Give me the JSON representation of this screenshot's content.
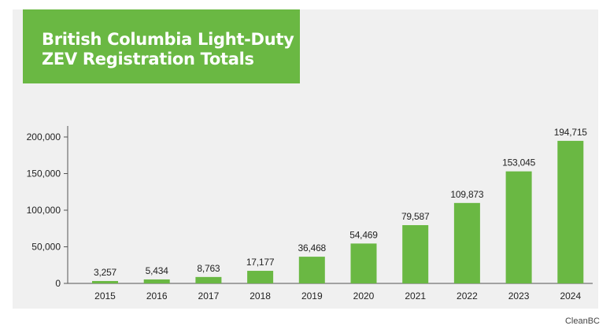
{
  "colors": {
    "bar": "#6ab843",
    "title_background": "#6ab843",
    "title_text": "#ffffff",
    "panel_background": "#f0f0f0",
    "axis": "#555555",
    "text": "#222222"
  },
  "source": "CleanBC",
  "chart_data": {
    "type": "bar",
    "title": [
      "British Columbia Light-Duty",
      "ZEV Registration Totals"
    ],
    "xlabel": "",
    "ylabel": "",
    "grid": false,
    "legend": "none",
    "ylim": [
      0,
      215000
    ],
    "yticks": [
      0,
      50000,
      100000,
      150000,
      200000
    ],
    "ytick_labels": [
      "0",
      "50,000",
      "100,000",
      "150,000",
      "200,000"
    ],
    "categories": [
      "2015",
      "2016",
      "2017",
      "2018",
      "2019",
      "2020",
      "2021",
      "2022",
      "2023",
      "2024"
    ],
    "values": [
      3257,
      5434,
      8763,
      17177,
      36468,
      54469,
      79587,
      109873,
      153045,
      194715
    ],
    "value_labels": [
      "3,257",
      "5,434",
      "8,763",
      "17,177",
      "36,468",
      "54,469",
      "79,587",
      "109,873",
      "153,045",
      "194,715"
    ]
  }
}
